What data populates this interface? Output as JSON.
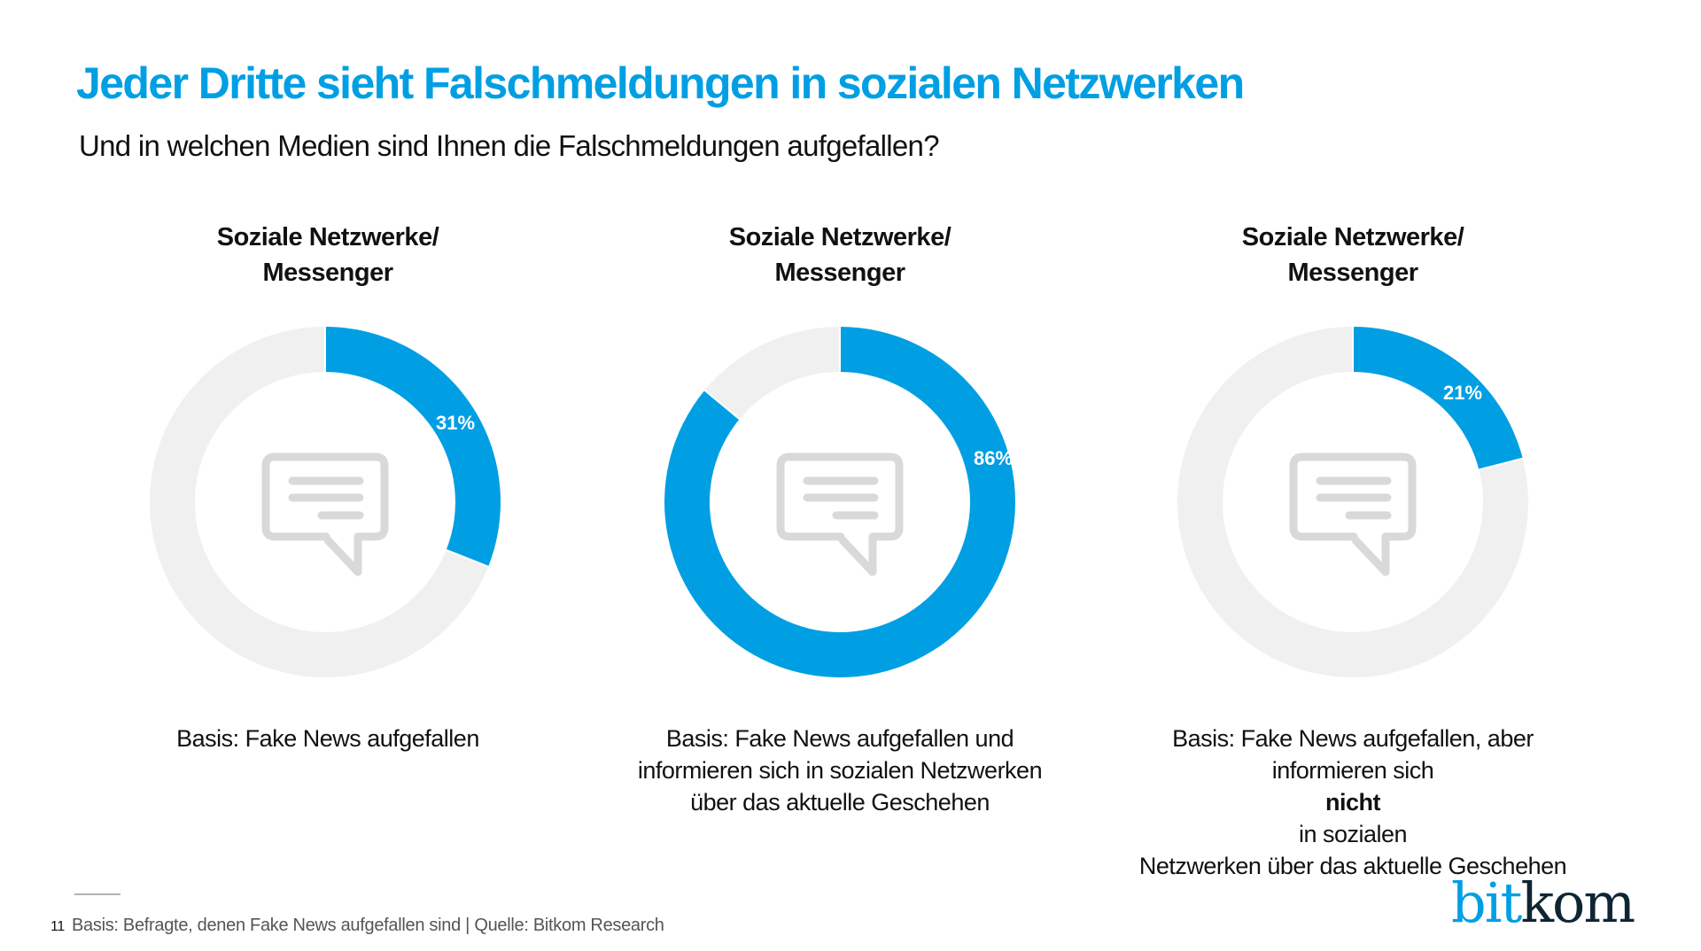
{
  "header": {
    "title": "Jeder Dritte sieht Falschmeldungen in sozialen Netzwerken",
    "subtitle": "Und in welchen Medien sind Ihnen die Falschmeldungen aufgefallen?"
  },
  "colors": {
    "accent": "#009FE3",
    "ring_background": "#F0F0F0",
    "icon": "#D9D9D9",
    "logo_dark": "#0F2532"
  },
  "chart_data": {
    "type": "pie",
    "variant": "donut",
    "title": "Jeder Dritte sieht Falschmeldungen in sozialen Netzwerken",
    "subtitle": "Und in welchen Medien sind Ihnen die Falschmeldungen aufgefallen?",
    "unit": "%",
    "charts": [
      {
        "heading": [
          "Soziale Netzwerke/",
          "Messenger"
        ],
        "value": 31,
        "label": "31%",
        "center_icon": "chat-bubble-icon",
        "caption": [
          {
            "parts": [
              {
                "text": "Basis: Fake News aufgefallen",
                "bold": false
              }
            ]
          }
        ]
      },
      {
        "heading": [
          "Soziale Netzwerke/",
          "Messenger"
        ],
        "value": 86,
        "label": "86%",
        "center_icon": "chat-bubble-icon",
        "caption": [
          {
            "parts": [
              {
                "text": "Basis: Fake News aufgefallen und",
                "bold": false
              }
            ]
          },
          {
            "parts": [
              {
                "text": "informieren sich in sozialen Netzwerken",
                "bold": false
              }
            ]
          },
          {
            "parts": [
              {
                "text": "über das aktuelle Geschehen",
                "bold": false
              }
            ]
          }
        ]
      },
      {
        "heading": [
          "Soziale Netzwerke/",
          "Messenger"
        ],
        "value": 21,
        "label": "21%",
        "center_icon": "chat-bubble-icon",
        "caption": [
          {
            "parts": [
              {
                "text": "Basis: Fake News aufgefallen, aber",
                "bold": false
              }
            ]
          },
          {
            "parts": [
              {
                "text": "informieren sich ",
                "bold": false
              },
              {
                "text": "nicht",
                "bold": true
              },
              {
                "text": " in sozialen",
                "bold": false
              }
            ]
          },
          {
            "parts": [
              {
                "text": "Netzwerken über das aktuelle Geschehen",
                "bold": false
              }
            ]
          }
        ]
      }
    ]
  },
  "footer": {
    "page_number": "11",
    "note": "Basis: Befragte, denen Fake News aufgefallen sind | Quelle: Bitkom Research"
  },
  "logo": {
    "part1": "bit",
    "part2": "kom"
  }
}
